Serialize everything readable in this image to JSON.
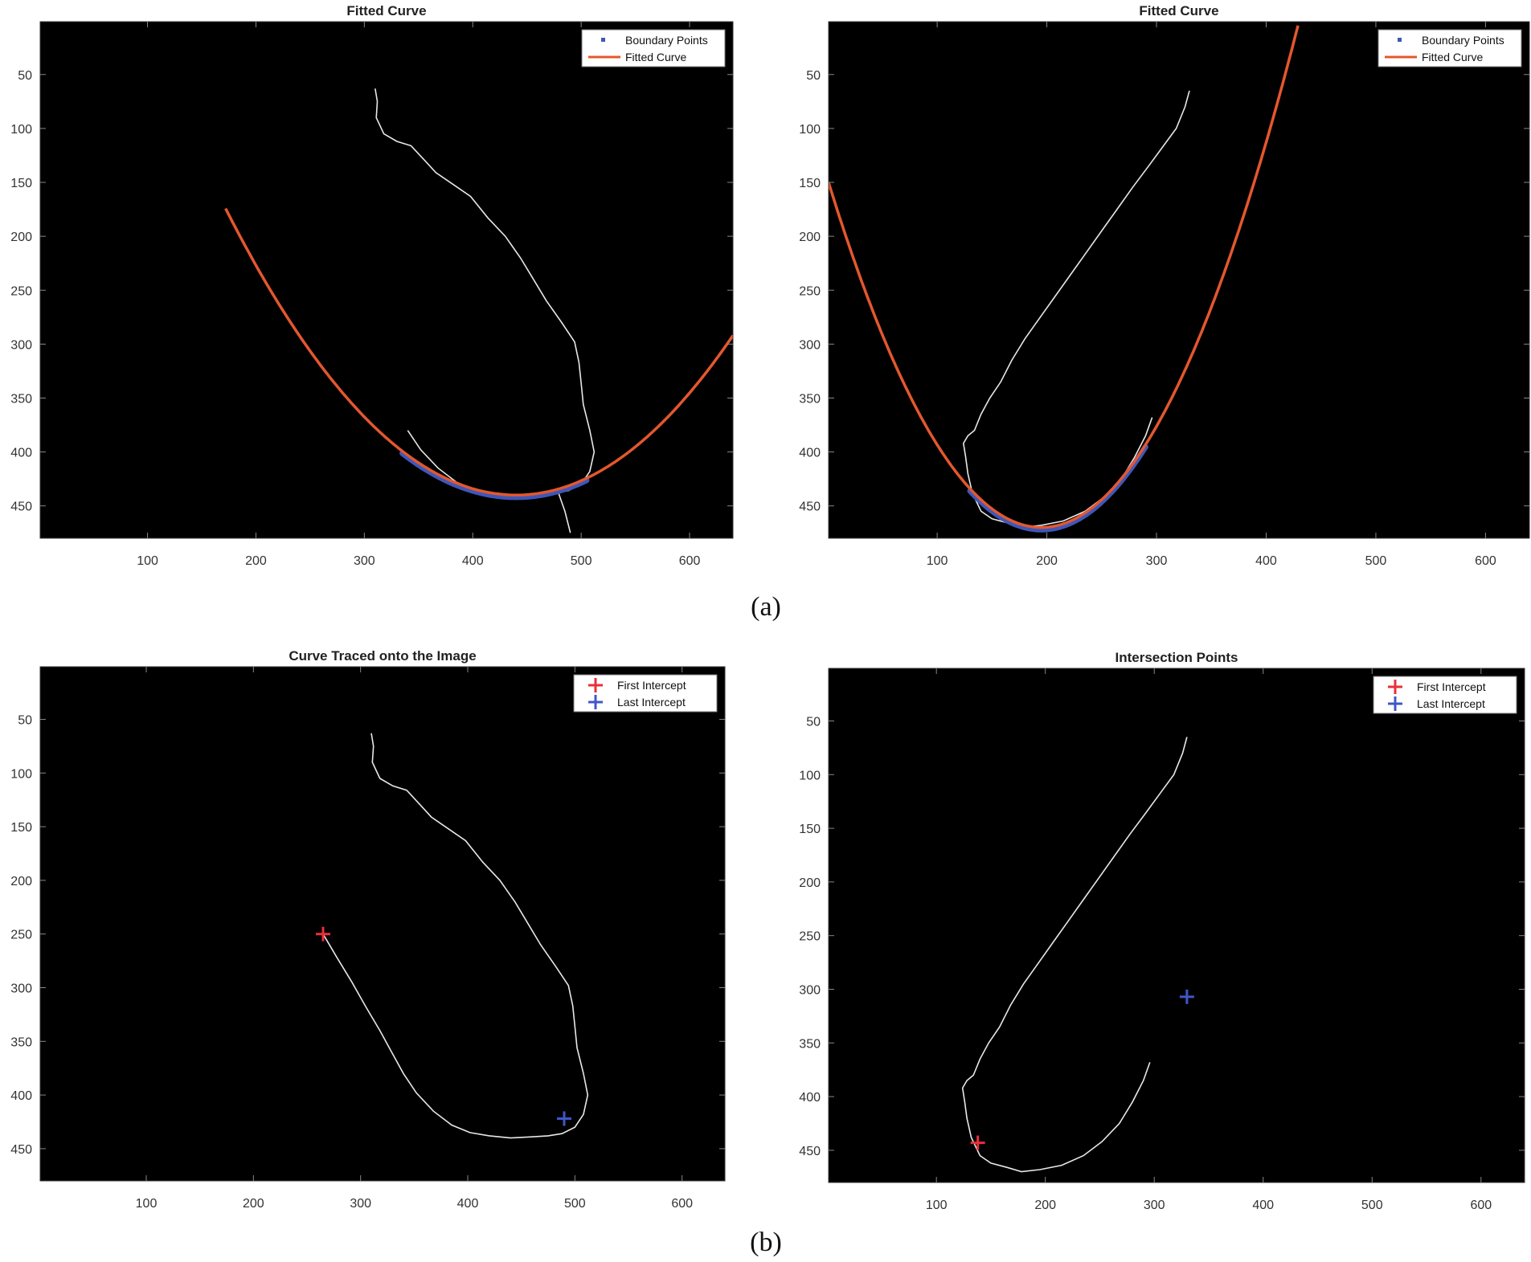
{
  "figure": {
    "captions": [
      "(a)",
      "(b)"
    ]
  },
  "colors": {
    "background": "#000000",
    "trace": "#e8e8e8",
    "fitted_curve": "#e4572e",
    "boundary_points": "#3f57b8",
    "first_intercept": "#e8303a",
    "last_intercept": "#3f57c8"
  },
  "chart_data": [
    {
      "type": "line",
      "title": "Fitted Curve",
      "xlim": [
        1,
        640
      ],
      "ylim": [
        1,
        480
      ],
      "y_reversed": true,
      "xticks": [
        100,
        200,
        300,
        400,
        500,
        600
      ],
      "yticks": [
        50,
        100,
        150,
        200,
        250,
        300,
        350,
        400,
        450
      ],
      "legend": {
        "position": "top-right",
        "entries": [
          "Boundary Points",
          "Fitted Curve"
        ]
      },
      "trace": [
        [
          310,
          63
        ],
        [
          312,
          75
        ],
        [
          311,
          90
        ],
        [
          318,
          105
        ],
        [
          330,
          112
        ],
        [
          343,
          116
        ],
        [
          356,
          130
        ],
        [
          366,
          141
        ],
        [
          382,
          152
        ],
        [
          398,
          163
        ],
        [
          414,
          183
        ],
        [
          430,
          200
        ],
        [
          444,
          220
        ],
        [
          456,
          240
        ],
        [
          468,
          260
        ],
        [
          482,
          280
        ],
        [
          494,
          298
        ],
        [
          498,
          317
        ],
        [
          500,
          336
        ],
        [
          502,
          356
        ],
        [
          508,
          380
        ],
        [
          512,
          400
        ],
        [
          508,
          418
        ],
        [
          500,
          430
        ],
        [
          488,
          436
        ],
        [
          475,
          438
        ],
        [
          460,
          439
        ],
        [
          440,
          440
        ],
        [
          420,
          438
        ],
        [
          402,
          435
        ],
        [
          385,
          428
        ],
        [
          368,
          415
        ],
        [
          352,
          398
        ],
        [
          340,
          380
        ]
      ],
      "trace_tail": [
        [
          478,
          435
        ],
        [
          485,
          455
        ],
        [
          490,
          475
        ]
      ],
      "fitted_curve": {
        "vertex": [
          440,
          440
        ],
        "coef": 0.0037,
        "x_range": [
          172,
          640
        ]
      },
      "boundary_points": {
        "x_range": [
          335,
          505
        ]
      }
    },
    {
      "type": "line",
      "title": "Fitted Curve",
      "xlim": [
        1,
        640
      ],
      "ylim": [
        1,
        480
      ],
      "y_reversed": true,
      "xticks": [
        100,
        200,
        300,
        400,
        500,
        600
      ],
      "yticks": [
        50,
        100,
        150,
        200,
        250,
        300,
        350,
        400,
        450
      ],
      "legend": {
        "position": "top-right",
        "entries": [
          "Boundary Points",
          "Fitted Curve"
        ]
      },
      "trace": [
        [
          330,
          65
        ],
        [
          326,
          80
        ],
        [
          318,
          100
        ],
        [
          305,
          118
        ],
        [
          292,
          136
        ],
        [
          278,
          155
        ],
        [
          264,
          175
        ],
        [
          250,
          195
        ],
        [
          236,
          215
        ],
        [
          222,
          235
        ],
        [
          208,
          255
        ],
        [
          194,
          275
        ],
        [
          180,
          295
        ],
        [
          168,
          315
        ],
        [
          158,
          335
        ],
        [
          148,
          350
        ],
        [
          140,
          365
        ],
        [
          134,
          380
        ],
        [
          128,
          385
        ],
        [
          124,
          392
        ],
        [
          126,
          405
        ],
        [
          128,
          420
        ],
        [
          132,
          438
        ],
        [
          140,
          455
        ],
        [
          150,
          462
        ],
        [
          165,
          466
        ],
        [
          178,
          470
        ],
        [
          195,
          468
        ],
        [
          215,
          464
        ],
        [
          235,
          455
        ],
        [
          252,
          442
        ],
        [
          268,
          425
        ],
        [
          280,
          405
        ],
        [
          290,
          385
        ],
        [
          296,
          368
        ]
      ],
      "fitted_curve": {
        "vertex": [
          195,
          470
        ],
        "coef": 0.0085,
        "x_range": [
          1,
          430
        ]
      },
      "boundary_points": {
        "x_range": [
          130,
          290
        ]
      }
    },
    {
      "type": "scatter",
      "title": "Curve Traced onto the Image",
      "xlim": [
        1,
        640
      ],
      "ylim": [
        1,
        480
      ],
      "y_reversed": true,
      "xticks": [
        100,
        200,
        300,
        400,
        500,
        600
      ],
      "yticks": [
        50,
        100,
        150,
        200,
        250,
        300,
        350,
        400,
        450
      ],
      "legend": {
        "position": "top-right",
        "entries": [
          "First Intercept",
          "Last Intercept"
        ]
      },
      "trace": [
        [
          310,
          63
        ],
        [
          312,
          75
        ],
        [
          311,
          90
        ],
        [
          318,
          105
        ],
        [
          330,
          112
        ],
        [
          343,
          116
        ],
        [
          356,
          130
        ],
        [
          366,
          141
        ],
        [
          382,
          152
        ],
        [
          398,
          163
        ],
        [
          414,
          183
        ],
        [
          430,
          200
        ],
        [
          444,
          220
        ],
        [
          456,
          240
        ],
        [
          468,
          260
        ],
        [
          482,
          280
        ],
        [
          494,
          298
        ],
        [
          498,
          317
        ],
        [
          500,
          336
        ],
        [
          502,
          356
        ],
        [
          508,
          380
        ],
        [
          512,
          400
        ],
        [
          508,
          418
        ],
        [
          500,
          430
        ],
        [
          488,
          436
        ],
        [
          475,
          438
        ],
        [
          460,
          439
        ],
        [
          440,
          440
        ],
        [
          420,
          438
        ],
        [
          402,
          435
        ],
        [
          385,
          428
        ],
        [
          368,
          415
        ],
        [
          352,
          398
        ],
        [
          340,
          380
        ],
        [
          330,
          362
        ],
        [
          318,
          340
        ],
        [
          305,
          318
        ],
        [
          292,
          295
        ],
        [
          278,
          272
        ],
        [
          265,
          250
        ]
      ],
      "first_intercept": [
        265,
        250
      ],
      "last_intercept": [
        490,
        422
      ]
    },
    {
      "type": "scatter",
      "title": "Intersection Points",
      "xlim": [
        1,
        640
      ],
      "ylim": [
        1,
        480
      ],
      "y_reversed": true,
      "xticks": [
        100,
        200,
        300,
        400,
        500,
        600
      ],
      "yticks": [
        50,
        100,
        150,
        200,
        250,
        300,
        350,
        400,
        450
      ],
      "legend": {
        "position": "top-right",
        "entries": [
          "First Intercept",
          "Last Intercept"
        ]
      },
      "trace": [
        [
          330,
          65
        ],
        [
          326,
          80
        ],
        [
          318,
          100
        ],
        [
          305,
          118
        ],
        [
          292,
          136
        ],
        [
          278,
          155
        ],
        [
          264,
          175
        ],
        [
          250,
          195
        ],
        [
          236,
          215
        ],
        [
          222,
          235
        ],
        [
          208,
          255
        ],
        [
          194,
          275
        ],
        [
          180,
          295
        ],
        [
          168,
          315
        ],
        [
          158,
          335
        ],
        [
          148,
          350
        ],
        [
          140,
          365
        ],
        [
          134,
          380
        ],
        [
          128,
          385
        ],
        [
          124,
          392
        ],
        [
          126,
          405
        ],
        [
          128,
          420
        ],
        [
          132,
          438
        ],
        [
          140,
          455
        ],
        [
          150,
          462
        ],
        [
          165,
          466
        ],
        [
          178,
          470
        ],
        [
          195,
          468
        ],
        [
          215,
          464
        ],
        [
          235,
          455
        ],
        [
          252,
          442
        ],
        [
          268,
          425
        ],
        [
          280,
          405
        ],
        [
          290,
          385
        ],
        [
          296,
          368
        ]
      ],
      "first_intercept": [
        138,
        443
      ],
      "last_intercept": [
        330,
        307
      ]
    }
  ]
}
